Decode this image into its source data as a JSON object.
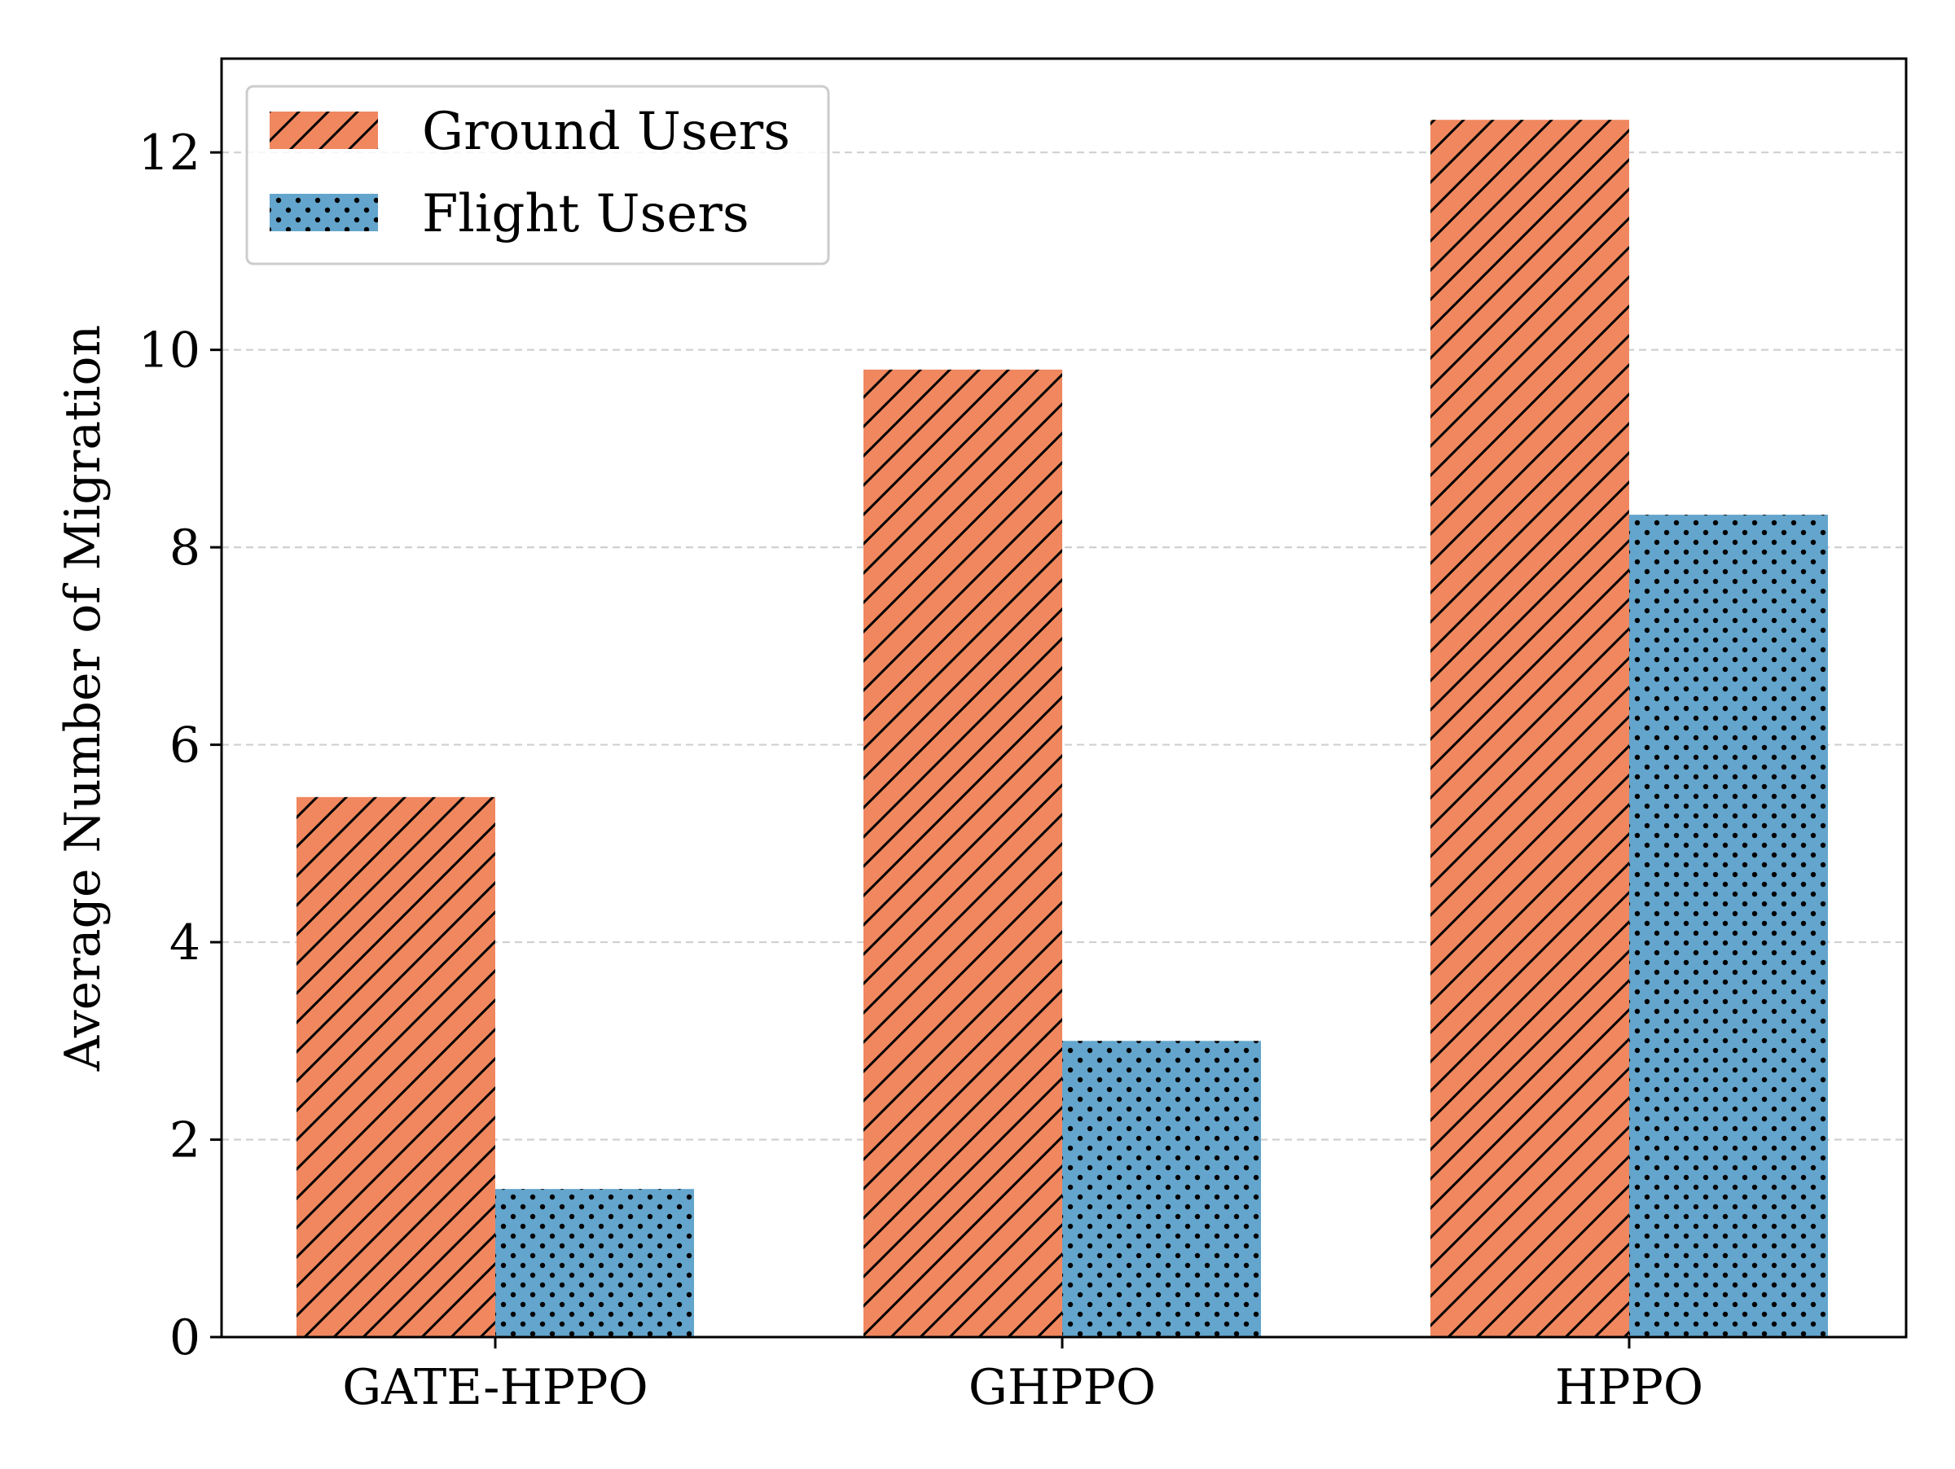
{
  "chart_data": {
    "type": "bar",
    "title": "",
    "xlabel": "",
    "ylabel": "Average Number of Migration",
    "categories": [
      "GATE-HPPO",
      "GHPPO",
      "HPPO"
    ],
    "series": [
      {
        "name": "Ground Users",
        "values": [
          5.47,
          9.8,
          12.33
        ],
        "color": "#f0875f",
        "pattern": "diagonal-hatch"
      },
      {
        "name": "Flight Users",
        "values": [
          1.5,
          3.0,
          8.33
        ],
        "color": "#63a5cc",
        "pattern": "dots"
      }
    ],
    "ylim": [
      0,
      12.95
    ],
    "yticks": [
      0,
      2,
      4,
      6,
      8,
      10,
      12
    ],
    "ytick_labels": [
      "0",
      "2",
      "4",
      "6",
      "8",
      "10",
      "12"
    ],
    "grid": "y-dashed",
    "legend_position": "top-left"
  }
}
